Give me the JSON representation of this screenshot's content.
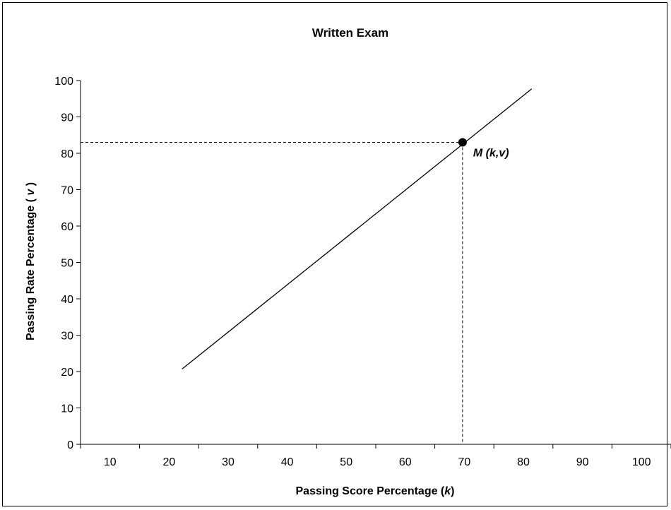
{
  "chart_data": {
    "type": "line",
    "title": "Written Exam",
    "xlabel": "Passing Score Percentage (",
    "xlabel_var": "k",
    "xlabel_end": ")",
    "ylabel": "Passing Rate Percentage ( ",
    "ylabel_var": "v",
    "ylabel_end": " )",
    "xlim": [
      5,
      105
    ],
    "ylim": [
      0,
      100
    ],
    "x_ticks": [
      10,
      20,
      30,
      40,
      50,
      60,
      70,
      80,
      90,
      100
    ],
    "y_ticks": [
      0,
      10,
      20,
      30,
      40,
      50,
      60,
      70,
      80,
      90,
      100
    ],
    "grid": false,
    "series": [
      {
        "x": [
          22.2,
          81.4
        ],
        "y": [
          20.7,
          97.7
        ],
        "color": "#000000"
      }
    ],
    "marker": {
      "x": 69.7,
      "y": 83,
      "label": "M (k,v)",
      "color": "#000000",
      "guides": "dashed"
    }
  }
}
